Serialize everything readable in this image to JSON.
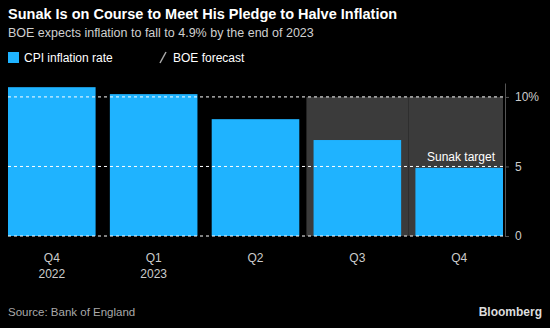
{
  "chart_data": {
    "type": "bar",
    "title": "Sunak Is on Course to Meet His Pledge to Halve Inflation",
    "subtitle": "BOE expects inflation to fall to 4.9% by the end of 2023",
    "categories": [
      "Q4\n2022",
      "Q1\n2023",
      "Q2",
      "Q3",
      "Q4"
    ],
    "series": [
      {
        "name": "CPI inflation rate",
        "color": "#1fb3ff",
        "values": [
          10.7,
          10.2,
          8.4,
          6.9,
          4.9
        ]
      }
    ],
    "forecast": {
      "name": "BOE forecast",
      "color": "#3b3b3b",
      "flags": [
        false,
        false,
        false,
        true,
        true
      ]
    },
    "ylim": [
      0,
      11
    ],
    "yticks": [
      0,
      5,
      {
        "value": 10,
        "label": "10%"
      }
    ],
    "grid": true,
    "legend": "top-left",
    "annotations": [
      {
        "text": "Sunak target",
        "y": 5
      }
    ],
    "source": "Source: Bank of England",
    "credit": "Bloomberg"
  }
}
